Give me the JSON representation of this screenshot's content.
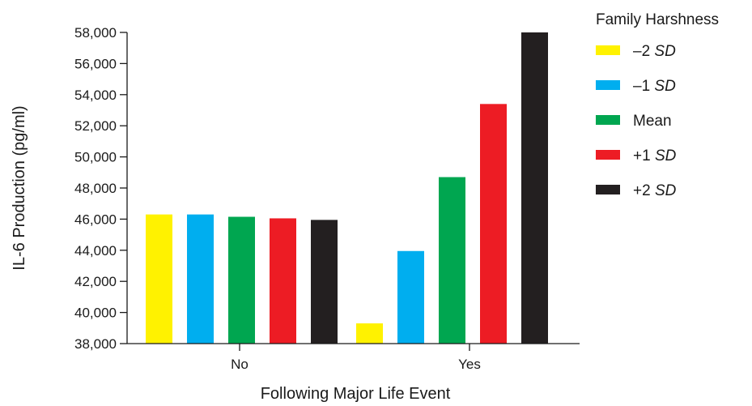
{
  "chart_data": {
    "type": "bar",
    "xlabel": "Following Major Life Event",
    "ylabel": "IL-6 Production (pg/ml)",
    "ylim": [
      38000,
      58000
    ],
    "yticks": [
      "38,000",
      "40,000",
      "42,000",
      "44,000",
      "46,000",
      "48,000",
      "50,000",
      "52,000",
      "54,000",
      "56,000",
      "58,000"
    ],
    "categories": [
      "No",
      "Yes"
    ],
    "legend_title": "Family Harshness",
    "series": [
      {
        "name": "–2 SD",
        "name_prefix": "–2 ",
        "name_italic": "SD",
        "color": "#fff200",
        "values": [
          46300,
          39300
        ]
      },
      {
        "name": "–1 SD",
        "name_prefix": "–1 ",
        "name_italic": "SD",
        "color": "#00aeef",
        "values": [
          46300,
          43950
        ]
      },
      {
        "name": "Mean",
        "name_prefix": "Mean",
        "name_italic": "",
        "color": "#00a650",
        "values": [
          46150,
          48700
        ]
      },
      {
        "name": "+1 SD",
        "name_prefix": "+1 ",
        "name_italic": "SD",
        "color": "#ed1c24",
        "values": [
          46050,
          53400
        ]
      },
      {
        "name": "+2 SD",
        "name_prefix": "+2 ",
        "name_italic": "SD",
        "color": "#231f20",
        "values": [
          45950,
          58000
        ]
      }
    ],
    "grid": false,
    "legend_position": "top-right"
  }
}
